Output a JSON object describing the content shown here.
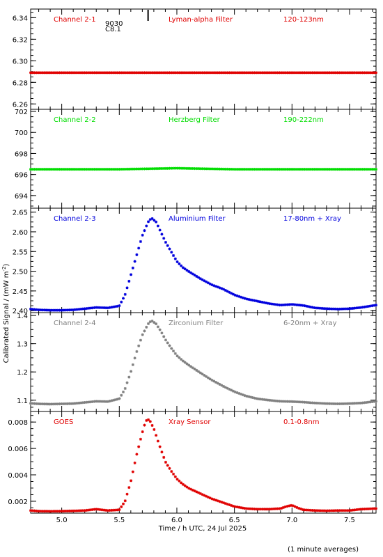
{
  "figure": {
    "ylabel": "Calibrated Signal / (mW m",
    "ylabel_sup": "-2",
    "ylabel_end": ")",
    "xlabel": "Time / h UTC, 24 Jul 2025",
    "footnote": "(1 minute averages)",
    "flare_marker": {
      "time": 5.75,
      "id": "9030",
      "class": "C8.1"
    }
  },
  "chart_data": [
    {
      "type": "scatter",
      "name": "Channel 2-1",
      "filter": "Lyman-alpha Filter",
      "band": "120-123nm",
      "color": "#e00000",
      "ylim": [
        6.255,
        6.348
      ],
      "yticks": [
        "6.26",
        "6.28",
        "6.30",
        "6.32",
        "6.34"
      ],
      "xlim": [
        4.73,
        7.73
      ],
      "series": [
        {
          "x": [
            4.73,
            5.0,
            5.5,
            6.0,
            6.5,
            7.0,
            7.5,
            7.73
          ],
          "y": [
            6.289,
            6.289,
            6.289,
            6.289,
            6.289,
            6.289,
            6.289,
            6.289
          ]
        }
      ]
    },
    {
      "type": "scatter",
      "name": "Channel 2-2",
      "filter": "Herzberg Filter",
      "band": "190-222nm",
      "color": "#00dd00",
      "ylim": [
        692.8,
        702.2
      ],
      "yticks": [
        "694",
        "696",
        "698",
        "700",
        "702"
      ],
      "xlim": [
        4.73,
        7.73
      ],
      "series": [
        {
          "x": [
            4.73,
            5.0,
            5.5,
            6.0,
            6.5,
            7.0,
            7.5,
            7.73
          ],
          "y": [
            696.5,
            696.5,
            696.5,
            696.6,
            696.5,
            696.5,
            696.5,
            696.5
          ]
        }
      ]
    },
    {
      "type": "scatter",
      "name": "Channel 2-3",
      "filter": "Aluminium Filter",
      "band": "17-80nm + Xray",
      "color": "#0000dd",
      "ylim": [
        2.395,
        2.66
      ],
      "yticks": [
        "2.40",
        "2.45",
        "2.50",
        "2.55",
        "2.60",
        "2.65"
      ],
      "xlim": [
        4.73,
        7.73
      ],
      "series": [
        {
          "x": [
            4.73,
            4.8,
            4.9,
            5.0,
            5.1,
            5.2,
            5.3,
            5.4,
            5.5,
            5.55,
            5.6,
            5.65,
            5.7,
            5.75,
            5.78,
            5.82,
            5.86,
            5.9,
            5.95,
            6.0,
            6.05,
            6.1,
            6.2,
            6.3,
            6.4,
            6.5,
            6.6,
            6.7,
            6.8,
            6.9,
            7.0,
            7.1,
            7.2,
            7.3,
            7.4,
            7.5,
            7.6,
            7.73
          ],
          "y": [
            2.404,
            2.402,
            2.401,
            2.401,
            2.402,
            2.405,
            2.408,
            2.407,
            2.412,
            2.44,
            2.49,
            2.54,
            2.59,
            2.625,
            2.635,
            2.625,
            2.6,
            2.575,
            2.55,
            2.525,
            2.51,
            2.5,
            2.482,
            2.466,
            2.455,
            2.44,
            2.43,
            2.424,
            2.418,
            2.414,
            2.416,
            2.413,
            2.407,
            2.405,
            2.404,
            2.405,
            2.408,
            2.414
          ]
        }
      ]
    },
    {
      "type": "scatter",
      "name": "Channel 2-4",
      "filter": "Zirconium Filter",
      "band": "6-20nm + Xray",
      "color": "#808080",
      "ylim": [
        1.06,
        1.41
      ],
      "yticks": [
        "1.1",
        "1.2",
        "1.3",
        "1.4"
      ],
      "xlim": [
        4.73,
        7.73
      ],
      "series": [
        {
          "x": [
            4.73,
            4.8,
            4.9,
            5.0,
            5.1,
            5.2,
            5.3,
            5.4,
            5.5,
            5.55,
            5.6,
            5.65,
            5.7,
            5.75,
            5.78,
            5.82,
            5.86,
            5.9,
            5.95,
            6.0,
            6.05,
            6.1,
            6.2,
            6.3,
            6.4,
            6.5,
            6.6,
            6.7,
            6.8,
            6.9,
            7.0,
            7.1,
            7.2,
            7.3,
            7.4,
            7.5,
            7.6,
            7.73
          ],
          "y": [
            1.089,
            1.087,
            1.086,
            1.087,
            1.088,
            1.092,
            1.096,
            1.095,
            1.105,
            1.14,
            1.2,
            1.27,
            1.33,
            1.37,
            1.382,
            1.37,
            1.345,
            1.315,
            1.285,
            1.258,
            1.24,
            1.225,
            1.198,
            1.172,
            1.15,
            1.13,
            1.115,
            1.105,
            1.1,
            1.096,
            1.095,
            1.093,
            1.09,
            1.088,
            1.087,
            1.088,
            1.09,
            1.096
          ]
        }
      ]
    },
    {
      "type": "scatter",
      "name": "GOES",
      "filter": "Xray Sensor",
      "band": "0.1-0.8nm",
      "color": "#e00000",
      "ylim": [
        0.0011,
        0.0088
      ],
      "yticks": [
        "0.002",
        "0.004",
        "0.006",
        "0.008"
      ],
      "xlim": [
        4.73,
        7.73
      ],
      "xticks": [
        "5.0",
        "5.5",
        "6.0",
        "6.5",
        "7.0",
        "7.5"
      ],
      "series": [
        {
          "x": [
            4.73,
            4.8,
            4.9,
            5.0,
            5.1,
            5.2,
            5.25,
            5.3,
            5.4,
            5.5,
            5.55,
            5.6,
            5.65,
            5.7,
            5.73,
            5.76,
            5.8,
            5.85,
            5.9,
            5.95,
            6.0,
            6.05,
            6.1,
            6.2,
            6.3,
            6.4,
            6.5,
            6.6,
            6.7,
            6.8,
            6.9,
            6.95,
            7.0,
            7.05,
            7.1,
            7.2,
            7.3,
            7.4,
            7.5,
            7.6,
            7.73
          ],
          "y": [
            0.0013,
            0.00125,
            0.00124,
            0.00125,
            0.00127,
            0.0013,
            0.00135,
            0.0014,
            0.0013,
            0.00135,
            0.002,
            0.0035,
            0.0055,
            0.0072,
            0.0081,
            0.0082,
            0.0075,
            0.0062,
            0.005,
            0.0043,
            0.0037,
            0.0033,
            0.003,
            0.0026,
            0.0022,
            0.0019,
            0.0016,
            0.00145,
            0.0014,
            0.0014,
            0.00145,
            0.0016,
            0.0017,
            0.0015,
            0.00135,
            0.0013,
            0.00128,
            0.0013,
            0.0013,
            0.0014,
            0.00145
          ]
        }
      ]
    }
  ]
}
